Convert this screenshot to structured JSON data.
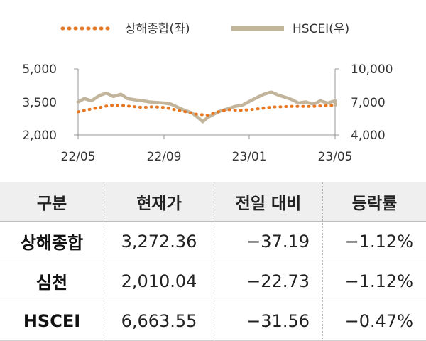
{
  "chart_data": {
    "type": "line",
    "x_ticks": [
      "22/05",
      "22/09",
      "23/01",
      "23/05"
    ],
    "left_ticks": [
      "5,000",
      "3,500",
      "2,000"
    ],
    "right_ticks": [
      "10,000",
      "7,000",
      "4,000"
    ],
    "y_left_range": [
      2000,
      5000
    ],
    "y_right_range": [
      4000,
      10000
    ],
    "legend_position": "top",
    "series": [
      {
        "name": "상해종합(좌)",
        "axis": "left",
        "style": "dotted",
        "color": "#E87722",
        "x": [
          "2022-05-01",
          "2022-05-15",
          "2022-06-01",
          "2022-06-15",
          "2022-07-01",
          "2022-07-15",
          "2022-08-01",
          "2022-08-15",
          "2022-09-01",
          "2022-09-15",
          "2022-10-01",
          "2022-10-15",
          "2022-11-01",
          "2022-11-15",
          "2022-12-01",
          "2022-12-15",
          "2023-01-01",
          "2023-01-15",
          "2023-02-01",
          "2023-02-15",
          "2023-03-01",
          "2023-03-15",
          "2023-04-01",
          "2023-04-15",
          "2023-05-01",
          "2023-05-15"
        ],
        "y": [
          3050,
          3150,
          3250,
          3350,
          3350,
          3300,
          3250,
          3280,
          3250,
          3150,
          3050,
          2950,
          2900,
          3050,
          3150,
          3120,
          3150,
          3200,
          3270,
          3280,
          3300,
          3300,
          3300,
          3330,
          3350,
          3280
        ]
      },
      {
        "name": "HSCEI(우)",
        "axis": "right",
        "style": "solid",
        "color": "#C2B59B",
        "x": [
          "2022-05-01",
          "2022-05-10",
          "2022-05-20",
          "2022-06-01",
          "2022-06-10",
          "2022-06-20",
          "2022-07-01",
          "2022-07-10",
          "2022-07-20",
          "2022-08-01",
          "2022-08-10",
          "2022-08-20",
          "2022-09-01",
          "2022-09-10",
          "2022-09-20",
          "2022-10-01",
          "2022-10-10",
          "2022-10-20",
          "2022-10-25",
          "2022-11-01",
          "2022-11-10",
          "2022-11-20",
          "2022-12-01",
          "2022-12-10",
          "2022-12-20",
          "2023-01-01",
          "2023-01-10",
          "2023-01-20",
          "2023-01-30",
          "2023-02-10",
          "2023-02-20",
          "2023-03-01",
          "2023-03-10",
          "2023-03-20",
          "2023-04-01",
          "2023-04-10",
          "2023-04-20",
          "2023-05-01",
          "2023-05-10",
          "2023-05-15"
        ],
        "y": [
          7000,
          7300,
          7100,
          7600,
          7800,
          7500,
          7700,
          7300,
          7200,
          7100,
          7000,
          6950,
          6900,
          6800,
          6500,
          6200,
          6000,
          5500,
          5200,
          5600,
          5900,
          6200,
          6400,
          6600,
          6700,
          7100,
          7400,
          7700,
          7900,
          7600,
          7400,
          7200,
          6900,
          7000,
          6800,
          7100,
          6900,
          7100,
          6800,
          6700
        ]
      }
    ]
  },
  "table": {
    "headers": [
      "구분",
      "현재가",
      "전일 대비",
      "등락률"
    ],
    "rows": [
      [
        "상해종합",
        "3,272.36",
        "−37.19",
        "−1.12%"
      ],
      [
        "심천",
        "2,010.04",
        "−22.73",
        "−1.12%"
      ],
      [
        "HSCEI",
        "6,663.55",
        "−31.56",
        "−0.47%"
      ]
    ]
  }
}
